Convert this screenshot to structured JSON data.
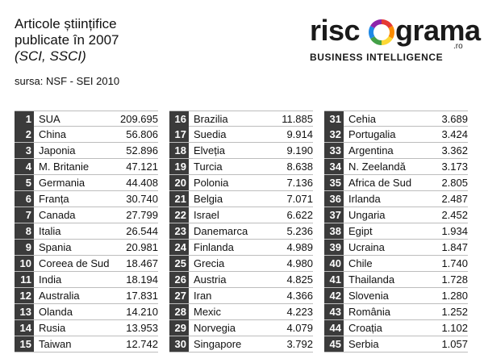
{
  "title": {
    "line1": "Articole științifice",
    "line2": "publicate în 2007",
    "line3": "(SCI, SSCI)"
  },
  "source": "sursa: NSF - SEI 2010",
  "logo": {
    "word_start": "risc",
    "word_end": "grama",
    "suffix": ".ro",
    "tagline": "BUSINESS INTELLIGENCE",
    "ring_colors": [
      "#e53935",
      "#fb8c00",
      "#fdd835",
      "#43a047",
      "#1e88e5",
      "#8e24aa"
    ]
  },
  "colors": {
    "rank_bg": "#3b3b3b",
    "rank_text": "#ffffff",
    "row_line": "#bdbdbd"
  },
  "chart_data": {
    "type": "table",
    "title": "Articole științifice publicate în 2007 (SCI, SSCI)",
    "source": "sursa: NSF - SEI 2010",
    "columns": [
      [
        {
          "rank": "1",
          "country": "SUA",
          "value": "209.695"
        },
        {
          "rank": "2",
          "country": "China",
          "value": "56.806"
        },
        {
          "rank": "3",
          "country": "Japonia",
          "value": "52.896"
        },
        {
          "rank": "4",
          "country": "M. Britanie",
          "value": "47.121"
        },
        {
          "rank": "5",
          "country": "Germania",
          "value": "44.408"
        },
        {
          "rank": "6",
          "country": "Franța",
          "value": "30.740"
        },
        {
          "rank": "7",
          "country": "Canada",
          "value": "27.799"
        },
        {
          "rank": "8",
          "country": "Italia",
          "value": "26.544"
        },
        {
          "rank": "9",
          "country": "Spania",
          "value": "20.981"
        },
        {
          "rank": "10",
          "country": "Coreea de Sud",
          "value": "18.467"
        },
        {
          "rank": "11",
          "country": "India",
          "value": "18.194"
        },
        {
          "rank": "12",
          "country": "Australia",
          "value": "17.831"
        },
        {
          "rank": "13",
          "country": "Olanda",
          "value": "14.210"
        },
        {
          "rank": "14",
          "country": "Rusia",
          "value": "13.953"
        },
        {
          "rank": "15",
          "country": "Taiwan",
          "value": "12.742"
        }
      ],
      [
        {
          "rank": "16",
          "country": "Brazilia",
          "value": "11.885"
        },
        {
          "rank": "17",
          "country": "Suedia",
          "value": "9.914"
        },
        {
          "rank": "18",
          "country": "Elveția",
          "value": "9.190"
        },
        {
          "rank": "19",
          "country": "Turcia",
          "value": "8.638"
        },
        {
          "rank": "20",
          "country": "Polonia",
          "value": "7.136"
        },
        {
          "rank": "21",
          "country": "Belgia",
          "value": "7.071"
        },
        {
          "rank": "22",
          "country": "Israel",
          "value": "6.622"
        },
        {
          "rank": "23",
          "country": "Danemarca",
          "value": "5.236"
        },
        {
          "rank": "24",
          "country": "Finlanda",
          "value": "4.989"
        },
        {
          "rank": "25",
          "country": "Grecia",
          "value": "4.980"
        },
        {
          "rank": "26",
          "country": "Austria",
          "value": "4.825"
        },
        {
          "rank": "27",
          "country": "Iran",
          "value": "4.366"
        },
        {
          "rank": "28",
          "country": "Mexic",
          "value": "4.223"
        },
        {
          "rank": "29",
          "country": "Norvegia",
          "value": "4.079"
        },
        {
          "rank": "30",
          "country": "Singapore",
          "value": "3.792"
        }
      ],
      [
        {
          "rank": "31",
          "country": "Cehia",
          "value": "3.689"
        },
        {
          "rank": "32",
          "country": "Portugalia",
          "value": "3.424"
        },
        {
          "rank": "33",
          "country": "Argentina",
          "value": "3.362"
        },
        {
          "rank": "34",
          "country": "N. Zeelandă",
          "value": "3.173"
        },
        {
          "rank": "35",
          "country": "Africa de Sud",
          "value": "2.805"
        },
        {
          "rank": "36",
          "country": "Irlanda",
          "value": "2.487"
        },
        {
          "rank": "37",
          "country": "Ungaria",
          "value": "2.452"
        },
        {
          "rank": "38",
          "country": "Egipt",
          "value": "1.934"
        },
        {
          "rank": "39",
          "country": "Ucraina",
          "value": "1.847"
        },
        {
          "rank": "40",
          "country": "Chile",
          "value": "1.740"
        },
        {
          "rank": "41",
          "country": "Thailanda",
          "value": "1.728"
        },
        {
          "rank": "42",
          "country": "Slovenia",
          "value": "1.280"
        },
        {
          "rank": "43",
          "country": "România",
          "value": "1.252"
        },
        {
          "rank": "44",
          "country": "Croația",
          "value": "1.102"
        },
        {
          "rank": "45",
          "country": "Serbia",
          "value": "1.057"
        }
      ]
    ]
  }
}
